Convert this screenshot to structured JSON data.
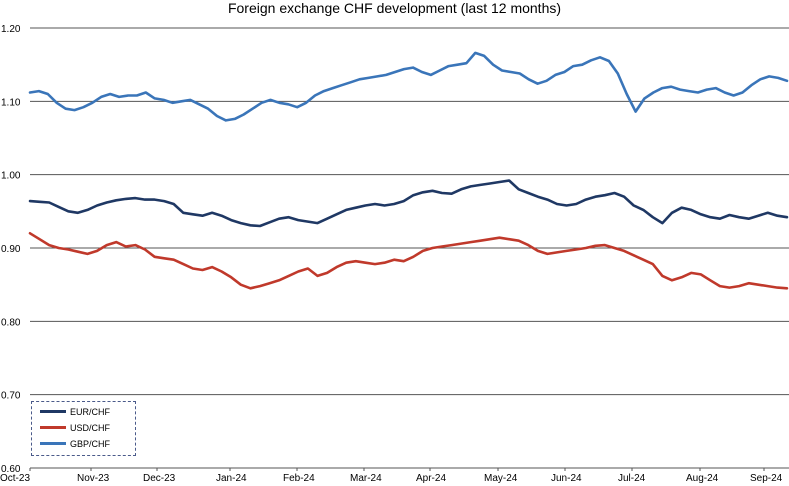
{
  "chart_data": {
    "type": "line",
    "title": "Foreign exchange CHF development (last 12 months)",
    "xlabel": "",
    "ylabel": "",
    "ylim": [
      0.6,
      1.2
    ],
    "yticks": [
      "0.60",
      "0.70",
      "0.80",
      "0.90",
      "1.00",
      "1.10",
      "1.20"
    ],
    "xticks": [
      "Oct-23",
      "Nov-23",
      "Dec-23",
      "Jan-24",
      "Feb-24",
      "Mar-24",
      "Apr-24",
      "May-24",
      "Jun-24",
      "Jul-24",
      "Aug-24",
      "Sep-24"
    ],
    "grid": "horizontal",
    "legend_position": "bottom-left",
    "series": [
      {
        "name": "EUR/CHF",
        "color": "#1f3864",
        "values": [
          0.964,
          0.963,
          0.962,
          0.956,
          0.95,
          0.948,
          0.952,
          0.958,
          0.962,
          0.965,
          0.967,
          0.968,
          0.966,
          0.966,
          0.964,
          0.96,
          0.948,
          0.946,
          0.944,
          0.948,
          0.944,
          0.938,
          0.934,
          0.931,
          0.93,
          0.935,
          0.94,
          0.942,
          0.938,
          0.936,
          0.934,
          0.94,
          0.946,
          0.952,
          0.955,
          0.958,
          0.96,
          0.958,
          0.96,
          0.964,
          0.972,
          0.976,
          0.978,
          0.975,
          0.974,
          0.98,
          0.984,
          0.986,
          0.988,
          0.99,
          0.992,
          0.98,
          0.975,
          0.97,
          0.966,
          0.96,
          0.958,
          0.96,
          0.966,
          0.97,
          0.972,
          0.975,
          0.97,
          0.958,
          0.952,
          0.942,
          0.934,
          0.948,
          0.955,
          0.952,
          0.946,
          0.942,
          0.94,
          0.945,
          0.942,
          0.94,
          0.944,
          0.948,
          0.944,
          0.942
        ]
      },
      {
        "name": "USD/CHF",
        "color": "#c0392b",
        "values": [
          0.92,
          0.912,
          0.904,
          0.9,
          0.898,
          0.895,
          0.892,
          0.896,
          0.904,
          0.908,
          0.902,
          0.904,
          0.898,
          0.888,
          0.886,
          0.884,
          0.878,
          0.872,
          0.87,
          0.874,
          0.868,
          0.86,
          0.85,
          0.845,
          0.848,
          0.852,
          0.856,
          0.862,
          0.868,
          0.872,
          0.862,
          0.866,
          0.874,
          0.88,
          0.882,
          0.88,
          0.878,
          0.88,
          0.884,
          0.882,
          0.888,
          0.896,
          0.9,
          0.902,
          0.904,
          0.906,
          0.908,
          0.91,
          0.912,
          0.914,
          0.912,
          0.91,
          0.904,
          0.896,
          0.892,
          0.894,
          0.896,
          0.898,
          0.9,
          0.903,
          0.904,
          0.9,
          0.896,
          0.89,
          0.884,
          0.878,
          0.862,
          0.856,
          0.86,
          0.866,
          0.864,
          0.856,
          0.848,
          0.846,
          0.848,
          0.852,
          0.85,
          0.848,
          0.846,
          0.845
        ]
      },
      {
        "name": "GBP/CHF",
        "color": "#3a75b9",
        "values": [
          1.112,
          1.114,
          1.11,
          1.098,
          1.09,
          1.088,
          1.092,
          1.098,
          1.106,
          1.11,
          1.106,
          1.108,
          1.108,
          1.112,
          1.104,
          1.102,
          1.098,
          1.1,
          1.102,
          1.096,
          1.09,
          1.08,
          1.074,
          1.076,
          1.082,
          1.09,
          1.098,
          1.102,
          1.098,
          1.096,
          1.092,
          1.098,
          1.108,
          1.114,
          1.118,
          1.122,
          1.126,
          1.13,
          1.132,
          1.134,
          1.136,
          1.14,
          1.144,
          1.146,
          1.14,
          1.136,
          1.142,
          1.148,
          1.15,
          1.152,
          1.166,
          1.162,
          1.15,
          1.142,
          1.14,
          1.138,
          1.13,
          1.124,
          1.128,
          1.136,
          1.14,
          1.148,
          1.15,
          1.156,
          1.16,
          1.155,
          1.138,
          1.11,
          1.086,
          1.104,
          1.112,
          1.118,
          1.12,
          1.116,
          1.114,
          1.112,
          1.116,
          1.118,
          1.112,
          1.108,
          1.112,
          1.122,
          1.13,
          1.134,
          1.132,
          1.128
        ]
      }
    ]
  }
}
